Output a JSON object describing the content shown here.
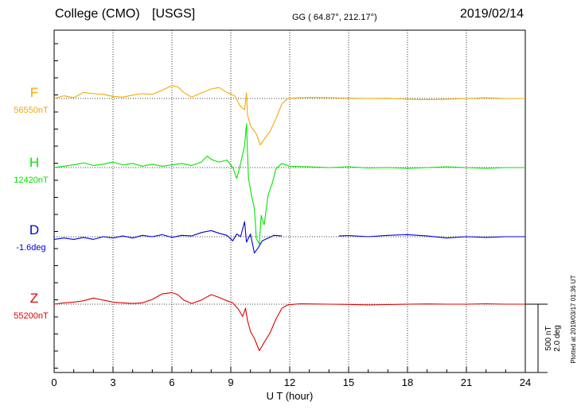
{
  "header": {
    "station": "College (CMO)",
    "source": "[USGS]",
    "coords": "GG ( 64.87°, 212.17°)",
    "date": "2019/02/14"
  },
  "side_note": "Plotted at 2019/03/17 01:36 UT",
  "scale": {
    "line1": "500 nT",
    "line2": "2.0 deg"
  },
  "chart_data": {
    "type": "line",
    "title": "College (CMO)  [USGS]",
    "xlabel": "U T (hour)",
    "xlim": [
      0,
      24
    ],
    "xticks": [
      "0",
      "3",
      "6",
      "9",
      "12",
      "15",
      "18",
      "21",
      "24"
    ],
    "grid": true,
    "y_units": "nT (500 nT per scale bar)",
    "series": [
      {
        "name": "F",
        "label": "F",
        "baseline_label": "56550nT",
        "color": "#f5a800",
        "points": [
          [
            0,
            0
          ],
          [
            0.5,
            20
          ],
          [
            1,
            5
          ],
          [
            1.5,
            45
          ],
          [
            2,
            35
          ],
          [
            2.5,
            30
          ],
          [
            3,
            15
          ],
          [
            3.5,
            10
          ],
          [
            4,
            25
          ],
          [
            4.5,
            35
          ],
          [
            5,
            30
          ],
          [
            5.5,
            60
          ],
          [
            6,
            95
          ],
          [
            6.3,
            85
          ],
          [
            6.6,
            45
          ],
          [
            7,
            10
          ],
          [
            7.5,
            40
          ],
          [
            8,
            70
          ],
          [
            8.4,
            80
          ],
          [
            8.8,
            45
          ],
          [
            9.2,
            20
          ],
          [
            9.5,
            -60
          ],
          [
            9.7,
            -80
          ],
          [
            9.8,
            40
          ],
          [
            9.85,
            -120
          ],
          [
            10,
            -200
          ],
          [
            10.3,
            -260
          ],
          [
            10.5,
            -340
          ],
          [
            10.7,
            -300
          ],
          [
            11,
            -240
          ],
          [
            11.3,
            -150
          ],
          [
            11.6,
            -40
          ],
          [
            11.9,
            0
          ],
          [
            12.5,
            5
          ],
          [
            13,
            8
          ],
          [
            14,
            5
          ],
          [
            15,
            3
          ],
          [
            16,
            0
          ],
          [
            17,
            2
          ],
          [
            18,
            -5
          ],
          [
            19,
            -8
          ],
          [
            20,
            -5
          ],
          [
            21,
            0
          ],
          [
            22,
            5
          ],
          [
            23,
            0
          ],
          [
            24,
            0
          ]
        ]
      },
      {
        "name": "H",
        "label": "H",
        "baseline_label": "12420nT",
        "color": "#00e600",
        "points": [
          [
            0,
            0
          ],
          [
            0.5,
            10
          ],
          [
            1,
            20
          ],
          [
            1.5,
            35
          ],
          [
            2,
            15
          ],
          [
            2.5,
            25
          ],
          [
            3,
            40
          ],
          [
            3.5,
            20
          ],
          [
            4,
            30
          ],
          [
            4.5,
            10
          ],
          [
            5,
            25
          ],
          [
            5.5,
            10
          ],
          [
            6,
            20
          ],
          [
            6.5,
            30
          ],
          [
            7,
            15
          ],
          [
            7.5,
            40
          ],
          [
            7.8,
            85
          ],
          [
            8,
            60
          ],
          [
            8.4,
            40
          ],
          [
            8.8,
            55
          ],
          [
            9.1,
            0
          ],
          [
            9.3,
            -80
          ],
          [
            9.5,
            30
          ],
          [
            9.7,
            160
          ],
          [
            9.8,
            320
          ],
          [
            9.9,
            -80
          ],
          [
            10.05,
            -200
          ],
          [
            10.2,
            -300
          ],
          [
            10.3,
            -520
          ],
          [
            10.45,
            -560
          ],
          [
            10.55,
            -350
          ],
          [
            10.7,
            -420
          ],
          [
            10.9,
            -200
          ],
          [
            11.1,
            -120
          ],
          [
            11.3,
            -10
          ],
          [
            11.6,
            30
          ],
          [
            12,
            10
          ],
          [
            13,
            5
          ],
          [
            14,
            0
          ],
          [
            15,
            5
          ],
          [
            16,
            -3
          ],
          [
            17,
            0
          ],
          [
            18,
            -5
          ],
          [
            19,
            0
          ],
          [
            20,
            5
          ],
          [
            21,
            0
          ],
          [
            22,
            -5
          ],
          [
            23,
            0
          ],
          [
            24,
            0
          ]
        ]
      },
      {
        "name": "D",
        "label": "D",
        "baseline_label": "-1.6deg",
        "color": "#0000d8",
        "points": [
          [
            0,
            -20
          ],
          [
            0.5,
            -10
          ],
          [
            1,
            -20
          ],
          [
            1.5,
            -5
          ],
          [
            2,
            -20
          ],
          [
            2.5,
            0
          ],
          [
            3,
            -10
          ],
          [
            3.5,
            5
          ],
          [
            4,
            -10
          ],
          [
            4.5,
            10
          ],
          [
            5,
            0
          ],
          [
            5.5,
            15
          ],
          [
            6,
            -5
          ],
          [
            6.5,
            10
          ],
          [
            7,
            5
          ],
          [
            7.5,
            30
          ],
          [
            8,
            45
          ],
          [
            8.4,
            25
          ],
          [
            8.8,
            10
          ],
          [
            9.1,
            -30
          ],
          [
            9.3,
            20
          ],
          [
            9.5,
            0
          ],
          [
            9.7,
            110
          ],
          [
            9.8,
            -40
          ],
          [
            10,
            20
          ],
          [
            10.2,
            -120
          ],
          [
            10.4,
            -80
          ],
          [
            10.6,
            -30
          ],
          [
            10.9,
            -10
          ],
          [
            11.2,
            10
          ],
          [
            11.6,
            5
          ],
          [
            null,
            null
          ],
          [
            14.5,
            5
          ],
          [
            15,
            8
          ],
          [
            16,
            0
          ],
          [
            17,
            10
          ],
          [
            18,
            15
          ],
          [
            19,
            5
          ],
          [
            20,
            -10
          ],
          [
            21,
            0
          ],
          [
            22,
            -5
          ],
          [
            23,
            0
          ],
          [
            24,
            0
          ]
        ]
      },
      {
        "name": "Z",
        "label": "Z",
        "baseline_label": "55200nT",
        "color": "#e00000",
        "points": [
          [
            0,
            0
          ],
          [
            0.5,
            10
          ],
          [
            1,
            15
          ],
          [
            1.5,
            25
          ],
          [
            2,
            45
          ],
          [
            2.5,
            30
          ],
          [
            3,
            15
          ],
          [
            3.5,
            10
          ],
          [
            4,
            5
          ],
          [
            4.5,
            10
          ],
          [
            5,
            35
          ],
          [
            5.5,
            75
          ],
          [
            6,
            85
          ],
          [
            6.3,
            70
          ],
          [
            6.6,
            30
          ],
          [
            7,
            5
          ],
          [
            7.5,
            30
          ],
          [
            8,
            70
          ],
          [
            8.4,
            50
          ],
          [
            8.8,
            25
          ],
          [
            9.1,
            10
          ],
          [
            9.4,
            -40
          ],
          [
            9.6,
            -90
          ],
          [
            9.75,
            -30
          ],
          [
            9.85,
            -120
          ],
          [
            10,
            -200
          ],
          [
            10.2,
            -250
          ],
          [
            10.45,
            -340
          ],
          [
            10.7,
            -280
          ],
          [
            11,
            -210
          ],
          [
            11.3,
            -110
          ],
          [
            11.6,
            -30
          ],
          [
            11.9,
            -5
          ],
          [
            12.5,
            3
          ],
          [
            13,
            2
          ],
          [
            14,
            0
          ],
          [
            15,
            -2
          ],
          [
            16,
            -5
          ],
          [
            17,
            -3
          ],
          [
            18,
            0
          ],
          [
            19,
            2
          ],
          [
            20,
            0
          ],
          [
            21,
            0
          ],
          [
            22,
            3
          ],
          [
            23,
            0
          ],
          [
            24,
            0
          ]
        ]
      }
    ]
  }
}
